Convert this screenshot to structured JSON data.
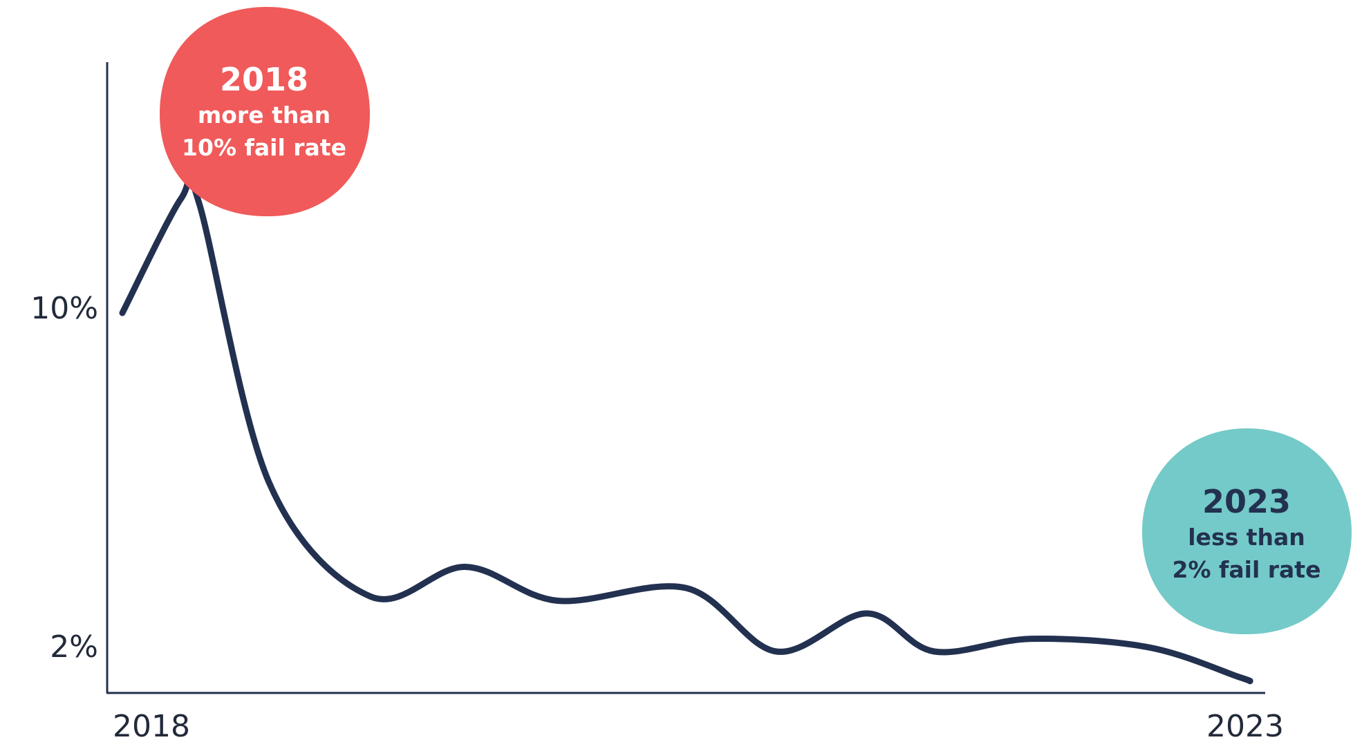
{
  "chart_data": {
    "type": "line",
    "x": [
      2018.0,
      2018.26,
      2018.34,
      2018.65,
      2019.1,
      2019.52,
      2019.93,
      2020.5,
      2020.9,
      2021.3,
      2021.6,
      2022.03,
      2022.55,
      2022.95,
      2023.0
    ],
    "series": [
      {
        "values": [
          10.0,
          12.7,
          12.6,
          6.0,
          3.3,
          4.0,
          3.2,
          3.5,
          2.0,
          2.9,
          2.0,
          2.3,
          2.1,
          1.4,
          1.3
        ]
      }
    ],
    "x_ticks": [
      "2018",
      "2023"
    ],
    "y_ticks": [
      "10%",
      "2%"
    ],
    "xlim": [
      2018,
      2023
    ],
    "ylim": [
      1,
      10
    ],
    "grid": false,
    "line_color": "#233150",
    "annotations": [
      {
        "year": "2018",
        "line1": "more than",
        "line2": "10% fail rate",
        "color": "#f05a5a",
        "text_color": "#ffffff"
      },
      {
        "year": "2023",
        "line1": "less than",
        "line2": "2% fail rate",
        "color": "#74cac8",
        "text_color": "#233150"
      }
    ]
  }
}
